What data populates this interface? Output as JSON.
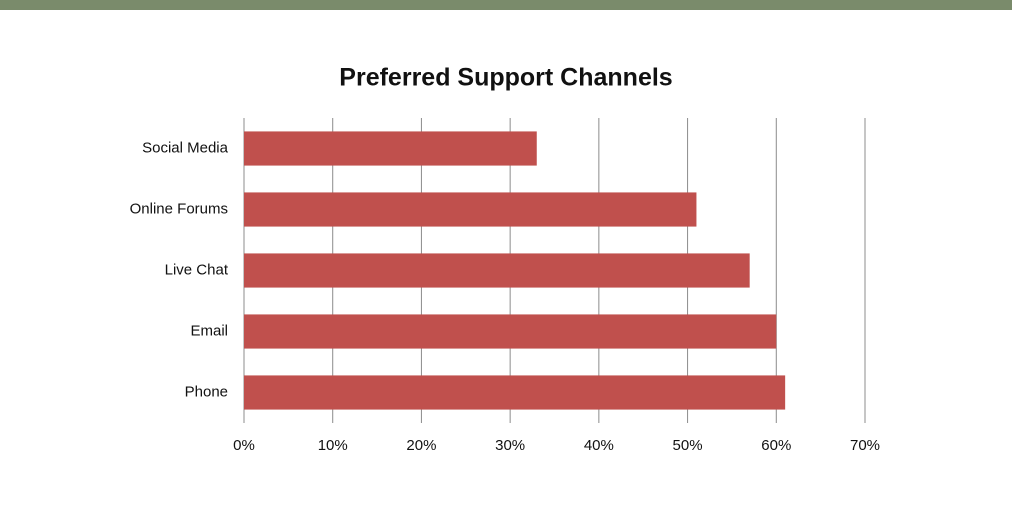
{
  "chart_data": {
    "type": "bar",
    "orientation": "horizontal",
    "title": "Preferred Support Channels",
    "categories": [
      "Social Media",
      "Online Forums",
      "Live Chat",
      "Email",
      "Phone"
    ],
    "values": [
      33,
      51,
      57,
      60,
      61
    ],
    "color": "#c0504d",
    "xlim": [
      0,
      70
    ],
    "xticks": [
      {
        "value": 0,
        "label": "0%"
      },
      {
        "value": 10,
        "label": "10%"
      },
      {
        "value": 20,
        "label": "20%"
      },
      {
        "value": 30,
        "label": "30%"
      },
      {
        "value": 40,
        "label": "40%"
      },
      {
        "value": 50,
        "label": "50%"
      },
      {
        "value": 60,
        "label": "60%"
      },
      {
        "value": 70,
        "label": "70%"
      }
    ],
    "grid": true
  }
}
